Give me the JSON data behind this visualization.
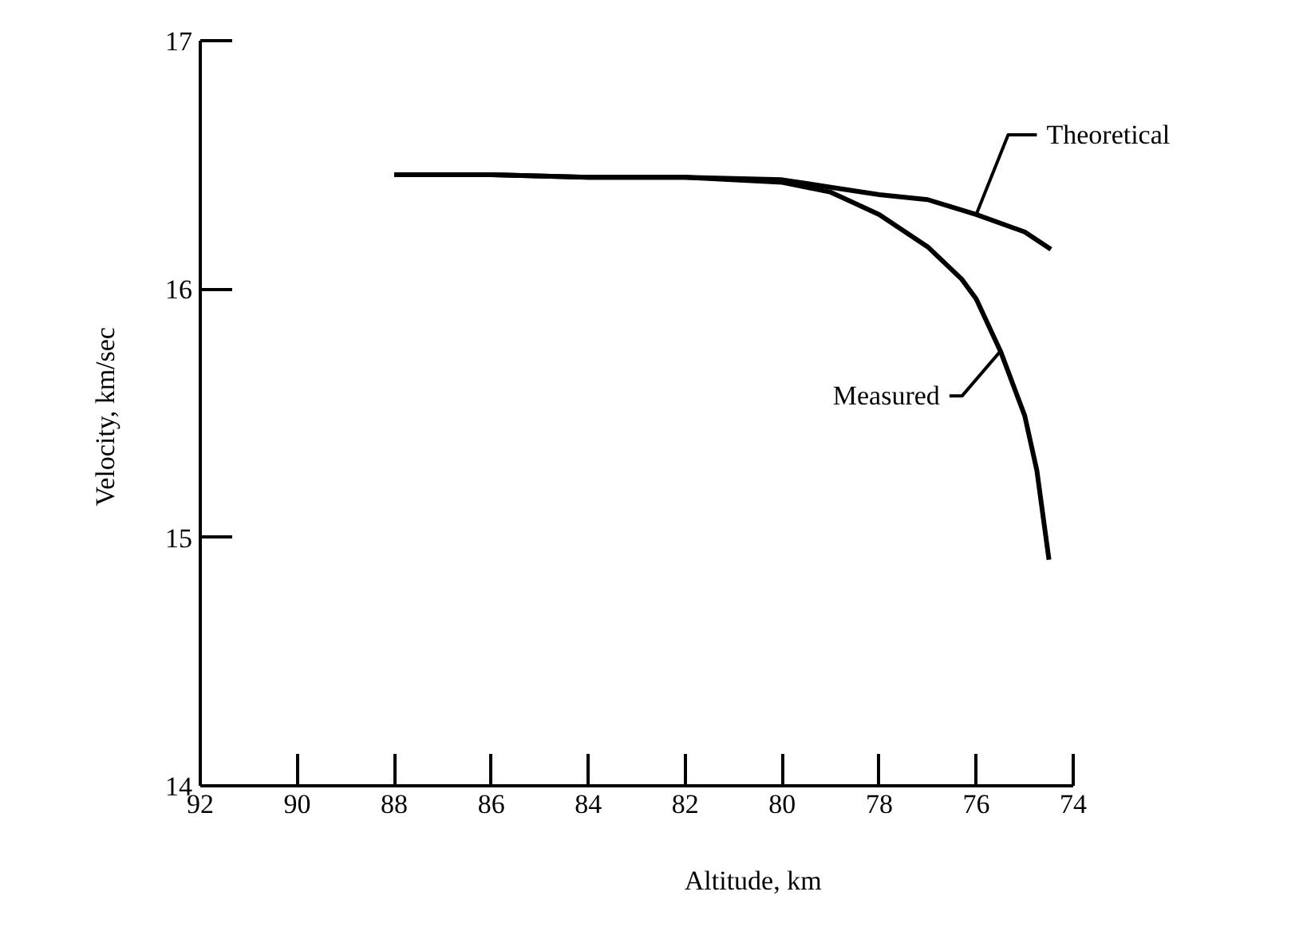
{
  "chart_data": {
    "type": "line",
    "xlabel": "Altitude,  km",
    "ylabel": "Velocity,  km/sec",
    "xlim": [
      92,
      74
    ],
    "xticks": [
      92,
      90,
      88,
      86,
      84,
      82,
      80,
      78,
      76,
      74
    ],
    "ylim": [
      14,
      17
    ],
    "yticks": [
      14,
      15,
      16,
      17
    ],
    "grid": false,
    "marker": "none",
    "line_style": "solid",
    "series": [
      {
        "name": "Theoretical",
        "color": "#000000",
        "x": [
          88,
          86,
          84,
          82,
          80,
          79,
          78,
          77,
          76,
          75,
          74.46
        ],
        "values": [
          16.46,
          16.46,
          16.45,
          16.45,
          16.44,
          16.41,
          16.38,
          16.36,
          16.3,
          16.23,
          16.16
        ]
      },
      {
        "name": "Measured",
        "color": "#000000",
        "x": [
          88,
          86,
          84,
          82,
          80,
          79,
          78,
          77,
          76.3,
          76,
          75.5,
          75,
          74.75,
          74.5
        ],
        "values": [
          16.46,
          16.46,
          16.45,
          16.45,
          16.43,
          16.39,
          16.3,
          16.17,
          16.04,
          15.96,
          15.75,
          15.49,
          15.27,
          14.91
        ]
      }
    ]
  }
}
